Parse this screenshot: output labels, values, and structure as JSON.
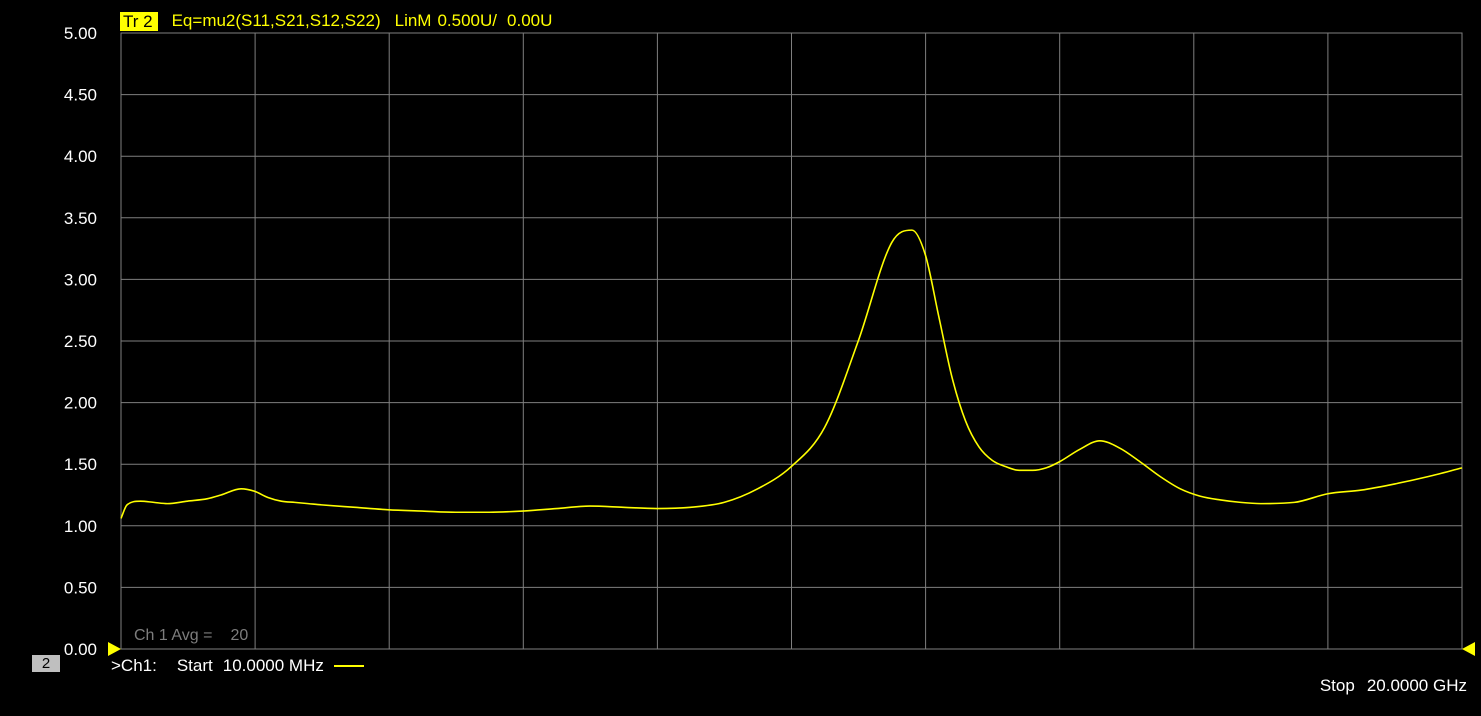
{
  "colors": {
    "background": "#000000",
    "trace": "#ffff00",
    "grid": "#7f7f7f",
    "text": "#ffffff",
    "avg_text": "#7d7d7d",
    "channel_box": "#bfbfbf"
  },
  "header": {
    "trace_id": "Tr 2",
    "equation": "Eq=mu2(S11,S21,S12,S22)",
    "format": "LinM",
    "scale": "0.500U/",
    "reference": "0.00U"
  },
  "averaging": {
    "label": "Ch 1 Avg =",
    "value": "20"
  },
  "footer": {
    "window_number": "2",
    "channel": ">Ch1:",
    "start_label": "Start",
    "start_value": "10.0000 MHz",
    "stop_label": "Stop",
    "stop_value": "20.0000 GHz"
  },
  "chart_data": {
    "type": "line",
    "title": "",
    "xlabel": "",
    "ylabel": "",
    "xlim": [
      10.0,
      20000.0
    ],
    "x_unit": "MHz",
    "ylim": [
      0.0,
      5.0
    ],
    "y_ticks": [
      "5.00",
      "4.50",
      "4.00",
      "3.50",
      "3.00",
      "2.50",
      "2.00",
      "1.50",
      "1.00",
      "0.50",
      "0.00"
    ],
    "x_divisions": 10,
    "grid": true,
    "reference_level": 0.0,
    "series": [
      {
        "color": "#ffff00",
        "x": [
          10,
          100,
          300,
          500,
          700,
          1000,
          1300,
          1500,
          1800,
          2000,
          2200,
          2400,
          2600,
          2800,
          3000,
          3500,
          4000,
          4500,
          5000,
          5500,
          6000,
          6500,
          7000,
          7500,
          8000,
          8500,
          9000,
          9500,
          10000,
          10500,
          11000,
          11500,
          11800,
          12000,
          12200,
          12400,
          12600,
          12800,
          13000,
          13200,
          13400,
          13600,
          13800,
          14000,
          14300,
          14600,
          14900,
          15200,
          15500,
          15800,
          16100,
          16400,
          16700,
          17000,
          17500,
          18000,
          18500,
          19000,
          19500,
          20000
        ],
        "values": [
          1.06,
          1.17,
          1.2,
          1.19,
          1.18,
          1.2,
          1.22,
          1.25,
          1.3,
          1.28,
          1.23,
          1.2,
          1.19,
          1.18,
          1.17,
          1.15,
          1.13,
          1.12,
          1.11,
          1.11,
          1.12,
          1.14,
          1.16,
          1.15,
          1.14,
          1.15,
          1.19,
          1.3,
          1.48,
          1.8,
          2.5,
          3.3,
          3.4,
          3.2,
          2.7,
          2.2,
          1.85,
          1.64,
          1.53,
          1.48,
          1.45,
          1.45,
          1.47,
          1.52,
          1.62,
          1.69,
          1.63,
          1.52,
          1.4,
          1.3,
          1.24,
          1.21,
          1.19,
          1.18,
          1.19,
          1.26,
          1.29,
          1.34,
          1.4,
          1.47
        ]
      }
    ]
  }
}
